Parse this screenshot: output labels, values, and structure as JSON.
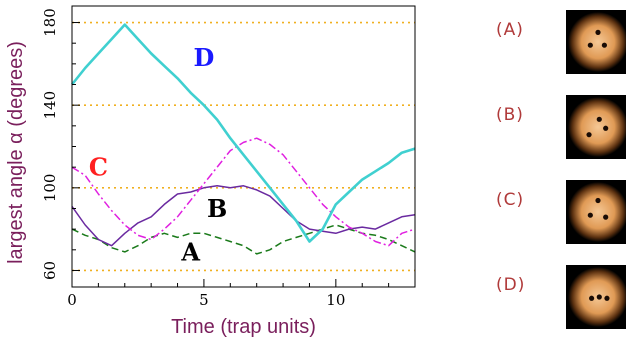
{
  "chart_data": {
    "type": "line",
    "title": "",
    "xlabel": "Time   (trap units)",
    "ylabel": "largest angle  α   (degrees)",
    "xlim": [
      0,
      13
    ],
    "ylim": [
      52,
      188
    ],
    "xticks": [
      0,
      5,
      10
    ],
    "yticks": [
      60,
      100,
      140,
      180
    ],
    "grid": "dotted horizontal reference lines at 60, 100, 140, 180",
    "reference_lines": [
      60,
      100,
      140,
      180
    ],
    "series": [
      {
        "name": "A",
        "label_color": "#000000",
        "line_color": "#1a7a1a",
        "style": "dashed",
        "label_pos": [
          4.5,
          69
        ],
        "x": [
          0,
          0.5,
          1,
          1.5,
          2,
          2.5,
          3,
          3.5,
          4,
          4.5,
          5,
          5.5,
          6,
          6.5,
          7,
          7.5,
          8,
          8.5,
          9,
          9.5,
          10,
          10.5,
          11,
          11.5,
          12,
          12.5,
          13
        ],
        "y": [
          80,
          77,
          75,
          71,
          69,
          72,
          76,
          78,
          76,
          78,
          78,
          76,
          74,
          72,
          68,
          70,
          74,
          76,
          78,
          80,
          82,
          80,
          78,
          77,
          75,
          72,
          69
        ]
      },
      {
        "name": "B",
        "label_color": "#000000",
        "line_color": "#6a2aa0",
        "style": "solid",
        "label_pos": [
          5.5,
          90
        ],
        "x": [
          0,
          0.5,
          1,
          1.5,
          2,
          2.5,
          3,
          3.5,
          4,
          4.5,
          5,
          5.5,
          6,
          6.5,
          7,
          7.5,
          8,
          8.5,
          9,
          9.5,
          10,
          10.5,
          11,
          11.5,
          12,
          12.5,
          13
        ],
        "y": [
          91,
          82,
          75,
          72,
          78,
          83,
          86,
          92,
          97,
          98,
          100,
          101,
          100,
          101,
          99,
          96,
          90,
          84,
          80,
          79,
          78,
          80,
          81,
          80,
          83,
          86,
          87
        ]
      },
      {
        "name": "C",
        "label_color": "#ff2020",
        "line_color": "#e020e0",
        "style": "dashdot",
        "label_pos": [
          1.0,
          110
        ],
        "x": [
          0,
          0.5,
          1,
          1.5,
          2,
          2.5,
          3,
          3.5,
          4,
          4.5,
          5,
          5.5,
          6,
          6.5,
          7,
          7.5,
          8,
          8.5,
          9,
          9.5,
          10,
          10.5,
          11,
          11.5,
          12,
          12.5,
          13
        ],
        "y": [
          110,
          106,
          97,
          89,
          82,
          77,
          75,
          80,
          86,
          94,
          102,
          110,
          118,
          122,
          124,
          121,
          116,
          108,
          100,
          92,
          86,
          81,
          78,
          74,
          72,
          78,
          80
        ]
      },
      {
        "name": "D",
        "label_color": "#1a1aff",
        "line_color": "#40d0d0",
        "style": "solid",
        "label_pos": [
          5.0,
          163
        ],
        "x": [
          0,
          0.5,
          1,
          1.5,
          2,
          2.5,
          3,
          3.5,
          4,
          4.5,
          5,
          5.5,
          6,
          6.5,
          7,
          7.5,
          8,
          8.5,
          9,
          9.5,
          10,
          10.5,
          11,
          11.5,
          12,
          12.5,
          13
        ],
        "y": [
          150,
          158,
          165,
          172,
          179,
          172,
          165,
          159,
          153,
          146,
          140,
          133,
          124,
          116,
          108,
          100,
          92,
          84,
          74,
          80,
          92,
          98,
          104,
          108,
          112,
          117,
          119
        ]
      }
    ]
  },
  "panels": [
    {
      "label": "(A)",
      "dots": [
        [
          0.5,
          0.35
        ],
        [
          0.38,
          0.55
        ],
        [
          0.6,
          0.55
        ]
      ]
    },
    {
      "label": "(B)",
      "dots": [
        [
          0.52,
          0.38
        ],
        [
          0.62,
          0.52
        ],
        [
          0.36,
          0.62
        ]
      ]
    },
    {
      "label": "(C)",
      "dots": [
        [
          0.5,
          0.32
        ],
        [
          0.38,
          0.55
        ],
        [
          0.62,
          0.58
        ]
      ]
    },
    {
      "label": "(D)",
      "dots": [
        [
          0.4,
          0.52
        ],
        [
          0.52,
          0.5
        ],
        [
          0.64,
          0.52
        ]
      ]
    }
  ]
}
